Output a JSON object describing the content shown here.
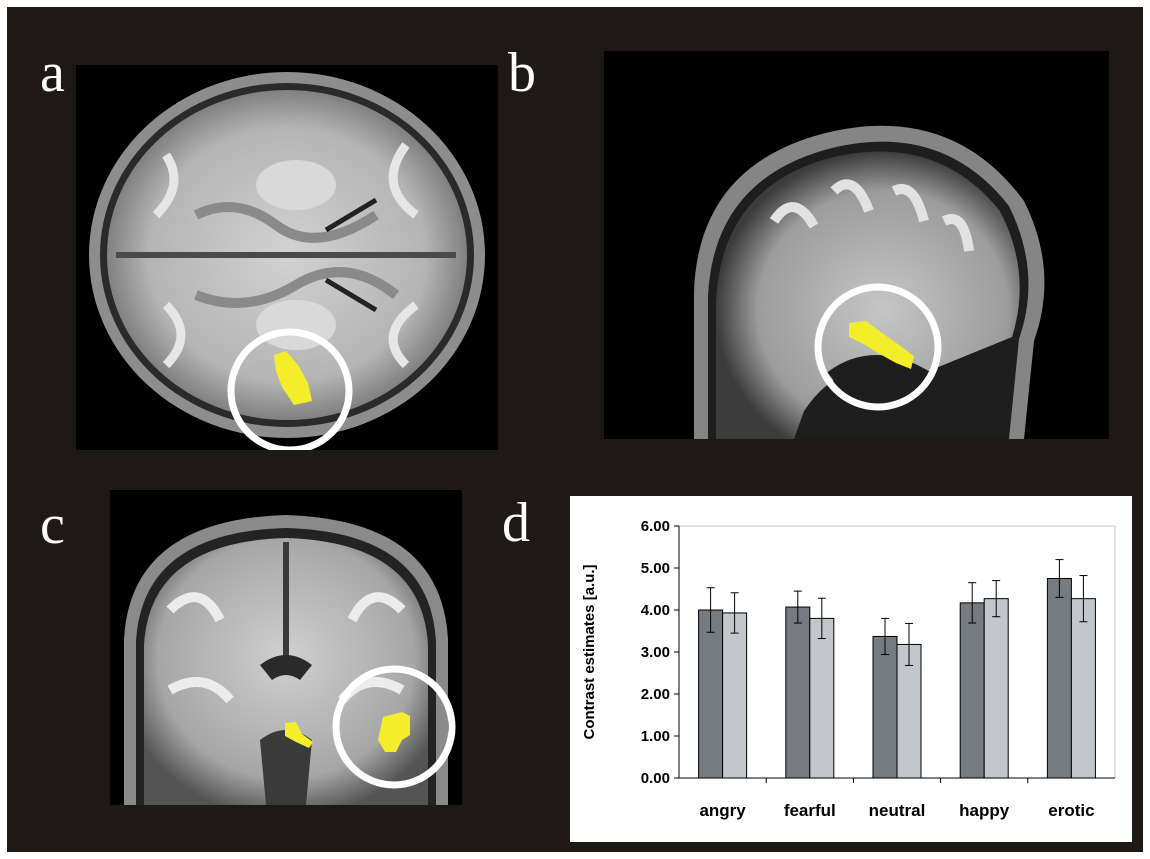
{
  "panels": {
    "a": {
      "letter": "a",
      "view": "axial",
      "image_icon": "axial-brain-scan-icon"
    },
    "b": {
      "letter": "b",
      "view": "sagittal",
      "image_icon": "sagittal-brain-scan-icon"
    },
    "c": {
      "letter": "c",
      "view": "coronal",
      "image_icon": "coronal-brain-scan-icon"
    },
    "d": {
      "letter": "d"
    }
  },
  "colors": {
    "background": "#1e1816",
    "activation": "#f4ee2a",
    "highlight_circle": "#ffffff",
    "series_dark": "#757b80",
    "series_light": "#c3c6ca"
  },
  "chart_data": {
    "type": "bar",
    "title": "",
    "xlabel": "",
    "ylabel": "Contrast estimates [a.u.]",
    "ylim": [
      0,
      6
    ],
    "yticks": [
      "0.00",
      "1.00",
      "2.00",
      "3.00",
      "4.00",
      "5.00",
      "6.00"
    ],
    "categories": [
      "angry",
      "fearful",
      "neutral",
      "happy",
      "erotic"
    ],
    "series": [
      {
        "values": [
          4.0,
          4.07,
          3.37,
          4.17,
          4.75
        ],
        "errors": [
          0.53,
          0.38,
          0.43,
          0.48,
          0.45
        ]
      },
      {
        "values": [
          3.93,
          3.8,
          3.18,
          4.27,
          4.27
        ],
        "errors": [
          0.48,
          0.48,
          0.5,
          0.43,
          0.55
        ]
      }
    ],
    "grid": false,
    "legend": "none"
  }
}
